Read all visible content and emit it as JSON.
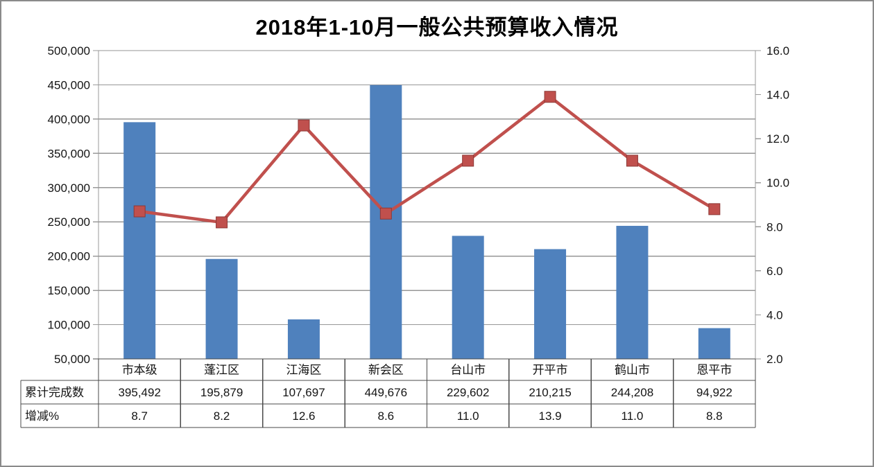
{
  "title": "2018年1-10月一般公共预算收入情况",
  "chart_data": {
    "type": "bar",
    "subtype": "bar+line combo, dual axis, with data table",
    "categories": [
      "市本级",
      "蓬江区",
      "江海区",
      "新会区",
      "台山市",
      "开平市",
      "鹤山市",
      "恩平市"
    ],
    "series": [
      {
        "name": "累计完成数",
        "type": "bar",
        "axis": "left",
        "values": [
          395492,
          195879,
          107697,
          449676,
          229602,
          210215,
          244208,
          94922
        ],
        "labels": [
          "395,492",
          "195,879",
          "107,697",
          "449,676",
          "229,602",
          "210,215",
          "244,208",
          "94,922"
        ],
        "color": "#4F81BD"
      },
      {
        "name": "增减%",
        "type": "line",
        "axis": "right",
        "values": [
          8.7,
          8.2,
          12.6,
          8.6,
          11.0,
          13.9,
          11.0,
          8.8
        ],
        "labels": [
          "8.7",
          "8.2",
          "12.6",
          "8.6",
          "11.0",
          "13.9",
          "11.0",
          "8.8"
        ],
        "color": "#C0504D"
      }
    ],
    "left_axis": {
      "min": 50000,
      "max": 500000,
      "step": 50000,
      "tick_labels": [
        "50,000",
        "100,000",
        "150,000",
        "200,000",
        "250,000",
        "300,000",
        "350,000",
        "400,000",
        "450,000",
        "500,000"
      ]
    },
    "right_axis": {
      "min": 2.0,
      "max": 16.0,
      "step": 2.0,
      "tick_labels": [
        "2.0",
        "4.0",
        "6.0",
        "8.0",
        "10.0",
        "12.0",
        "14.0",
        "16.0"
      ]
    },
    "grid": true,
    "legend": "none",
    "data_table_shown": true
  },
  "colors": {
    "bar": "#4F81BD",
    "line": "#C0504D",
    "marker_border": "#8C3836",
    "gridline": "#969696",
    "side_axis": "#9a9a9a",
    "table_border": "#4a4a4a",
    "text": "#141414",
    "frame_border": "#8a8a8a"
  }
}
